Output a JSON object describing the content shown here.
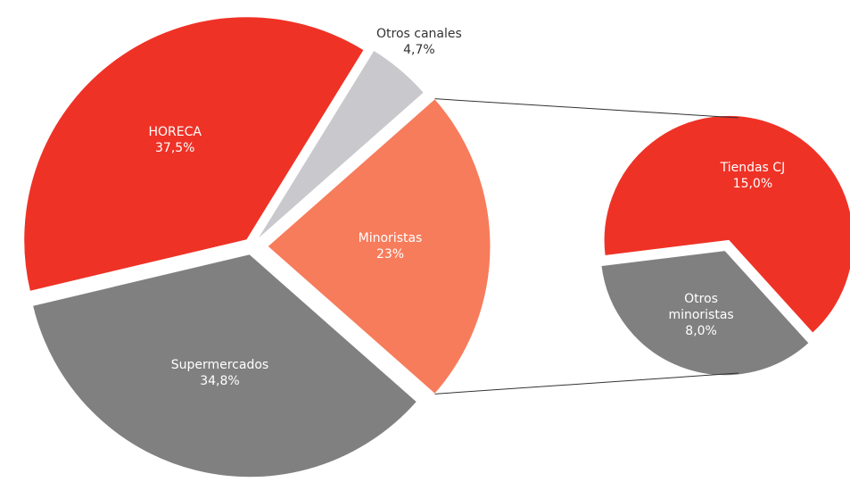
{
  "chart_data": {
    "type": "pie",
    "categories": [
      "HORECA",
      "Otros canales",
      "Minoristas",
      "Supermercados"
    ],
    "values": [
      37.5,
      4.7,
      23,
      34.8
    ],
    "value_labels": [
      "37,5%",
      "4,7%",
      "23%",
      "34,8%"
    ],
    "colors": [
      "#ef3226",
      "#c9c9cd",
      "#f77c5b",
      "#808080"
    ],
    "secondary": {
      "categories": [
        "Tiendas CJ",
        "Otros minoristas"
      ],
      "values": [
        15.0,
        8.0
      ],
      "value_labels": [
        "15,0%",
        "8,0%"
      ],
      "colors": [
        "#ef3226",
        "#808080"
      ]
    }
  }
}
